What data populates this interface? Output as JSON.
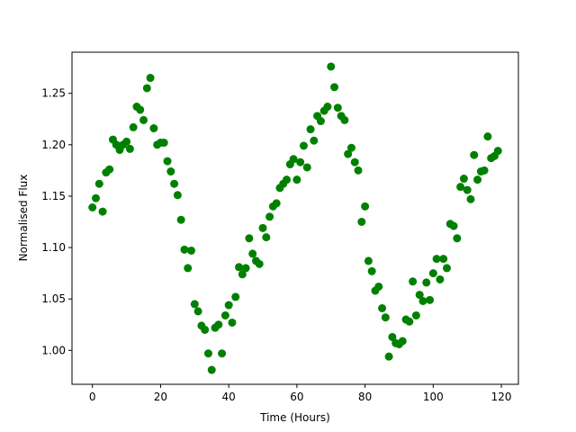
{
  "chart_data": {
    "type": "scatter",
    "xlabel": "Time (Hours)",
    "ylabel": "Normalised Flux",
    "xlim": [
      -6,
      125
    ],
    "ylim": [
      0.967,
      1.29
    ],
    "xticks": [
      0,
      20,
      40,
      60,
      80,
      100,
      120
    ],
    "yticks": [
      1.0,
      1.05,
      1.1,
      1.15,
      1.2,
      1.25
    ],
    "xtick_labels": [
      "0",
      "20",
      "40",
      "60",
      "80",
      "100",
      "120"
    ],
    "ytick_labels": [
      "1.00",
      "1.05",
      "1.10",
      "1.15",
      "1.20",
      "1.25"
    ],
    "grid": false,
    "marker_color": "#008000",
    "series": [
      {
        "x": [
          0,
          1,
          2,
          3,
          4,
          5,
          6,
          7,
          8,
          9,
          10,
          11,
          12,
          13,
          14,
          15,
          16,
          17,
          18,
          19,
          20,
          21,
          22,
          23,
          24,
          25,
          26,
          27,
          28,
          29,
          30,
          31,
          32,
          33,
          34,
          35,
          36,
          37,
          38,
          39,
          40,
          41,
          42,
          43,
          44,
          45,
          46,
          47,
          48,
          49,
          50,
          51,
          52,
          53,
          54,
          55,
          56,
          57,
          58,
          59,
          60,
          61,
          62,
          63,
          64,
          65,
          66,
          67,
          68,
          69,
          70,
          71,
          72,
          73,
          74,
          75,
          76,
          77,
          78,
          79,
          80,
          81,
          82,
          83,
          84,
          85,
          86,
          87,
          88,
          89,
          90,
          91,
          92,
          93,
          94,
          95,
          96,
          97,
          98,
          99,
          100,
          101,
          102,
          103,
          104,
          105,
          106,
          107,
          108,
          109,
          110,
          111,
          112,
          113,
          114,
          115,
          116,
          117,
          118,
          119
        ],
        "y": [
          1.139,
          1.148,
          1.162,
          1.135,
          1.173,
          1.176,
          1.205,
          1.2,
          1.195,
          1.2,
          1.203,
          1.196,
          1.217,
          1.237,
          1.234,
          1.224,
          1.255,
          1.265,
          1.216,
          1.2,
          1.202,
          1.202,
          1.184,
          1.174,
          1.162,
          1.151,
          1.127,
          1.098,
          1.08,
          1.097,
          1.045,
          1.038,
          1.024,
          1.02,
          0.997,
          0.981,
          1.022,
          1.025,
          0.997,
          1.034,
          1.044,
          1.027,
          1.052,
          1.081,
          1.074,
          1.08,
          1.109,
          1.094,
          1.087,
          1.084,
          1.119,
          1.11,
          1.13,
          1.14,
          1.143,
          1.158,
          1.162,
          1.166,
          1.181,
          1.186,
          1.166,
          1.183,
          1.199,
          1.178,
          1.215,
          1.204,
          1.228,
          1.223,
          1.233,
          1.237,
          1.276,
          1.256,
          1.236,
          1.228,
          1.224,
          1.191,
          1.197,
          1.183,
          1.175,
          1.125,
          1.14,
          1.087,
          1.077,
          1.058,
          1.062,
          1.041,
          1.032,
          0.994,
          1.013,
          1.007,
          1.006,
          1.009,
          1.03,
          1.028,
          1.067,
          1.034,
          1.054,
          1.048,
          1.066,
          1.049,
          1.075,
          1.089,
          1.069,
          1.089,
          1.08,
          1.123,
          1.121,
          1.109,
          1.159,
          1.167,
          1.156,
          1.147,
          1.19,
          1.166,
          1.174,
          1.175,
          1.208,
          1.187,
          1.189,
          1.194
        ]
      }
    ]
  }
}
